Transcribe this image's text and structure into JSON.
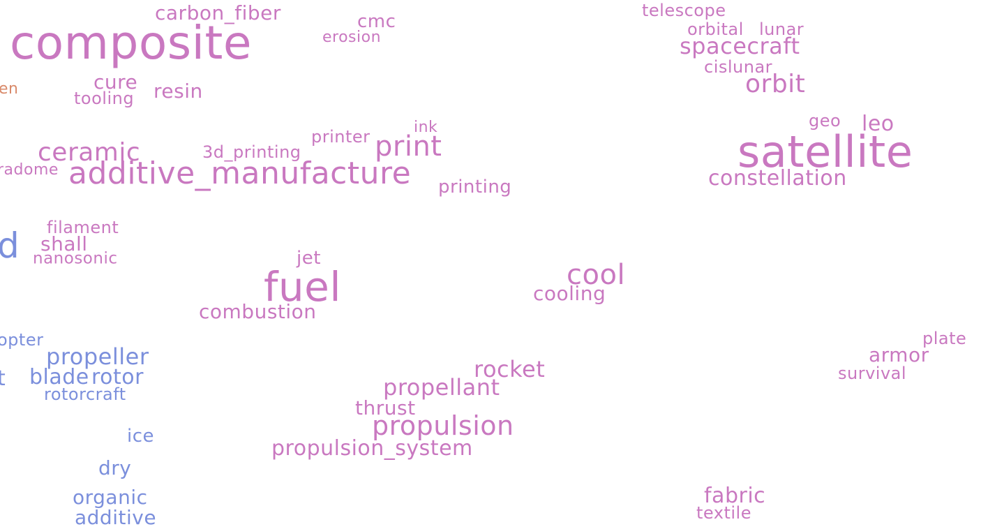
{
  "colors": {
    "pink": "#c978c0",
    "blue": "#7b8fdc",
    "orange": "#d98a6a"
  },
  "words": [
    {
      "text": "composite",
      "color": "pink"
    },
    {
      "text": "carbon_fiber",
      "color": "pink"
    },
    {
      "text": "cmc",
      "color": "pink"
    },
    {
      "text": "erosion",
      "color": "pink"
    },
    {
      "text": "en",
      "color": "orange"
    },
    {
      "text": "cure",
      "color": "pink"
    },
    {
      "text": "tooling",
      "color": "pink"
    },
    {
      "text": "resin",
      "color": "pink"
    },
    {
      "text": "ceramic",
      "color": "pink"
    },
    {
      "text": "radome",
      "color": "pink"
    },
    {
      "text": "additive_manufacture",
      "color": "pink"
    },
    {
      "text": "3d_printing",
      "color": "pink"
    },
    {
      "text": "printer",
      "color": "pink"
    },
    {
      "text": "ink",
      "color": "pink"
    },
    {
      "text": "print",
      "color": "pink"
    },
    {
      "text": "printing",
      "color": "pink"
    },
    {
      "text": "filament",
      "color": "pink"
    },
    {
      "text": "d",
      "color": "blue"
    },
    {
      "text": "shall",
      "color": "pink"
    },
    {
      "text": "nanosonic",
      "color": "pink"
    },
    {
      "text": "jet",
      "color": "pink"
    },
    {
      "text": "fuel",
      "color": "pink"
    },
    {
      "text": "combustion",
      "color": "pink"
    },
    {
      "text": "cool",
      "color": "pink"
    },
    {
      "text": "cooling",
      "color": "pink"
    },
    {
      "text": "telescope",
      "color": "pink"
    },
    {
      "text": "orbital",
      "color": "pink"
    },
    {
      "text": "lunar",
      "color": "pink"
    },
    {
      "text": "spacecraft",
      "color": "pink"
    },
    {
      "text": "cislunar",
      "color": "pink"
    },
    {
      "text": "orbit",
      "color": "pink"
    },
    {
      "text": "geo",
      "color": "pink"
    },
    {
      "text": "leo",
      "color": "pink"
    },
    {
      "text": "satellite",
      "color": "pink"
    },
    {
      "text": "constellation",
      "color": "pink"
    },
    {
      "text": "opter",
      "color": "blue"
    },
    {
      "text": "propeller",
      "color": "blue"
    },
    {
      "text": "t",
      "color": "blue"
    },
    {
      "text": "blade",
      "color": "blue"
    },
    {
      "text": "rotor",
      "color": "blue"
    },
    {
      "text": "rotorcraft",
      "color": "blue"
    },
    {
      "text": "ice",
      "color": "blue"
    },
    {
      "text": "dry",
      "color": "blue"
    },
    {
      "text": "organic",
      "color": "blue"
    },
    {
      "text": "additive",
      "color": "blue"
    },
    {
      "text": "rocket",
      "color": "pink"
    },
    {
      "text": "propellant",
      "color": "pink"
    },
    {
      "text": "thrust",
      "color": "pink"
    },
    {
      "text": "propulsion",
      "color": "pink"
    },
    {
      "text": "propulsion_system",
      "color": "pink"
    },
    {
      "text": "plate",
      "color": "pink"
    },
    {
      "text": "armor",
      "color": "pink"
    },
    {
      "text": "survival",
      "color": "pink"
    },
    {
      "text": "fabric",
      "color": "pink"
    },
    {
      "text": "textile",
      "color": "pink"
    }
  ]
}
